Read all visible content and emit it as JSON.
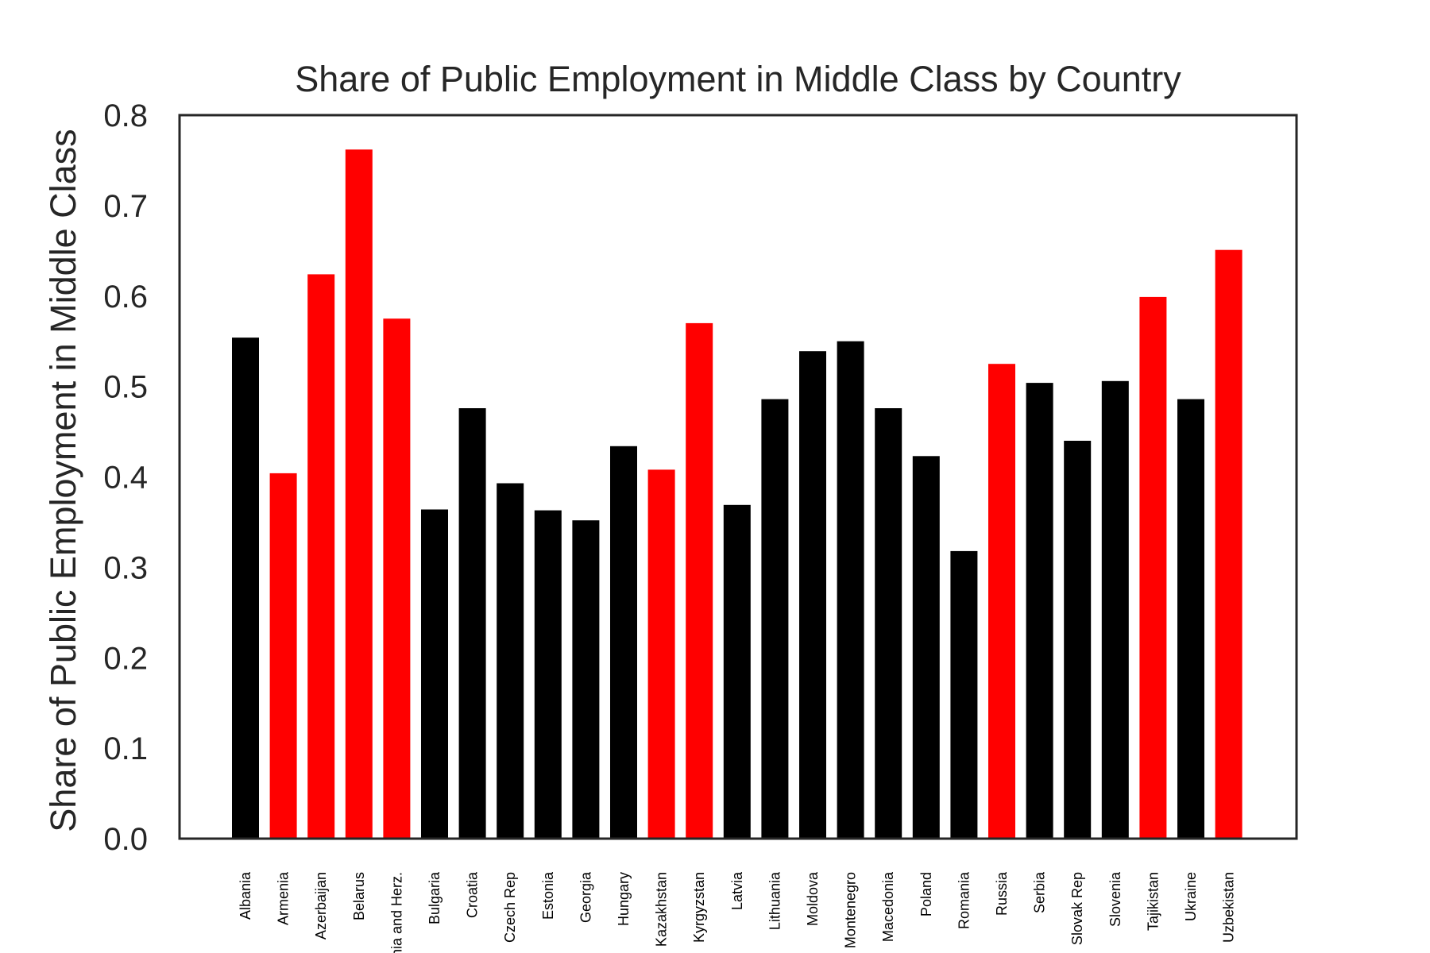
{
  "chart_data": {
    "type": "bar",
    "title": "Share of Public Employment in Middle Class by Country",
    "xlabel": "",
    "ylabel": "Share of Public Employment in Middle Class",
    "ylim": [
      0,
      0.8
    ],
    "yticks": [
      "0.0",
      "0.1",
      "0.2",
      "0.3",
      "0.4",
      "0.5",
      "0.6",
      "0.7",
      "0.8"
    ],
    "grid": false,
    "colors": {
      "black": "#000000",
      "red": "#ff0000",
      "axis": "#262626"
    },
    "categories": [
      "Albania",
      "Armenia",
      "Azerbaijan",
      "Belarus",
      "Bosnia and Herz.",
      "Bulgaria",
      "Croatia",
      "Czech Rep",
      "Estonia",
      "Georgia",
      "Hungary",
      "Kazakhstan",
      "Kyrgyzstan",
      "Latvia",
      "Lithuania",
      "Moldova",
      "Montenegro",
      "Macedonia",
      "Poland",
      "Romania",
      "Russia",
      "Serbia",
      "Slovak Rep",
      "Slovenia",
      "Tajikistan",
      "Ukraine",
      "Uzbekistan"
    ],
    "values": [
      0.554,
      0.404,
      0.624,
      0.762,
      0.575,
      0.364,
      0.476,
      0.393,
      0.363,
      0.352,
      0.434,
      0.408,
      0.57,
      0.369,
      0.486,
      0.539,
      0.55,
      0.476,
      0.423,
      0.318,
      0.525,
      0.504,
      0.44,
      0.506,
      0.599,
      0.486,
      0.651
    ],
    "bar_colors": [
      "#000000",
      "#ff0000",
      "#ff0000",
      "#ff0000",
      "#ff0000",
      "#000000",
      "#000000",
      "#000000",
      "#000000",
      "#000000",
      "#000000",
      "#ff0000",
      "#ff0000",
      "#000000",
      "#000000",
      "#000000",
      "#000000",
      "#000000",
      "#000000",
      "#000000",
      "#ff0000",
      "#000000",
      "#000000",
      "#000000",
      "#ff0000",
      "#000000",
      "#ff0000"
    ]
  }
}
